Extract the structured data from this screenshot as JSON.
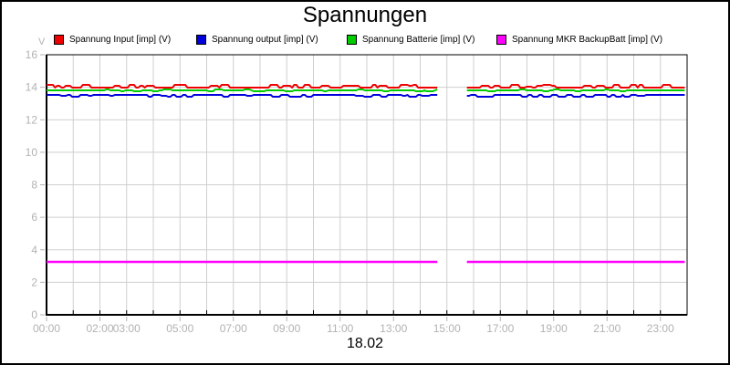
{
  "chart_data": {
    "type": "line",
    "title": "Spannungen",
    "y_unit_label": "V",
    "date_label": "18.02",
    "ylim": [
      0,
      16
    ],
    "y_ticks": [
      0,
      2,
      4,
      6,
      8,
      10,
      12,
      14,
      16
    ],
    "x_range_hours": [
      0,
      24
    ],
    "x_gridline_every_hours": 1,
    "x_tick_labels": [
      {
        "hour": 0,
        "label": "00:00"
      },
      {
        "hour": 2,
        "label": "02:00"
      },
      {
        "hour": 3,
        "label": "03:00"
      },
      {
        "hour": 5,
        "label": "05:00"
      },
      {
        "hour": 7,
        "label": "07:00"
      },
      {
        "hour": 9,
        "label": "09:00"
      },
      {
        "hour": 11,
        "label": "11:00"
      },
      {
        "hour": 13,
        "label": "13:00"
      },
      {
        "hour": 15,
        "label": "15:00"
      },
      {
        "hour": 17,
        "label": "17:00"
      },
      {
        "hour": 19,
        "label": "19:00"
      },
      {
        "hour": 21,
        "label": "21:00"
      },
      {
        "hour": 23,
        "label": "23:00"
      }
    ],
    "data_gap_hours": [
      14.7,
      15.75
    ],
    "data_start_hour": 0,
    "data_end_hour": 23.93,
    "series": [
      {
        "name": "Spannung Input [imp] (V)",
        "color": "#ee0000",
        "baseline_v": 14.0,
        "noise_amp_v": 0.15,
        "noise_direction": "up"
      },
      {
        "name": "Spannung output [imp] (V)",
        "color": "#0000dd",
        "baseline_v": 13.55,
        "noise_amp_v": 0.15,
        "noise_direction": "down"
      },
      {
        "name": "Spannung Batterie [imp] (V)",
        "color": "#00cc00",
        "baseline_v": 13.8,
        "noise_amp_v": 0.05,
        "noise_direction": "both"
      },
      {
        "name": "Spannung MKR BackupBatt [imp] (V)",
        "color": "#ff00ff",
        "baseline_v": 3.25,
        "noise_amp_v": 0.0,
        "noise_direction": "none"
      }
    ],
    "grid": true,
    "legend_position": "top"
  },
  "colors": {
    "background": "#ffffff",
    "plot_border": "#000000",
    "gridline": "#cfcfcf",
    "axis_label": "#b2b2b2",
    "title_text": "#000000"
  }
}
